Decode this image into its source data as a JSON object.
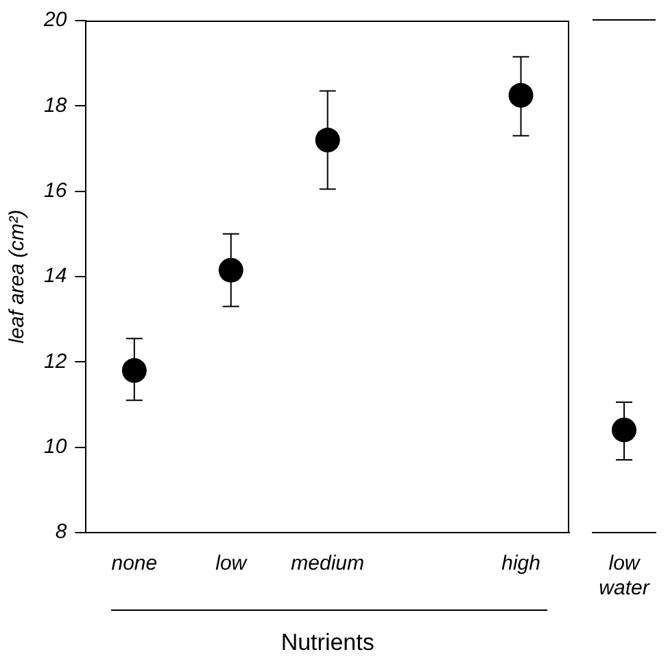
{
  "chart_data": [
    {
      "type": "scatter",
      "xlabel": "Nutrients",
      "ylabel": "leaf area (cm²)",
      "categories": [
        "none",
        "low",
        "medium",
        null,
        "high"
      ],
      "values": [
        11.8,
        14.15,
        17.2,
        null,
        18.25
      ],
      "errors": [
        [
          11.1,
          12.55
        ],
        [
          13.3,
          15.0
        ],
        [
          16.05,
          18.35
        ],
        null,
        [
          17.3,
          19.15
        ]
      ],
      "color": "#000000",
      "marker": "circle",
      "ylim": [
        8,
        20
      ],
      "yticks": [
        8,
        10,
        12,
        14,
        16,
        18,
        20
      ],
      "grid": false,
      "legend": false
    },
    {
      "type": "scatter",
      "categories": [
        "low water"
      ],
      "values": [
        10.4
      ],
      "errors": [
        [
          9.7,
          11.05
        ]
      ],
      "color": "#000000",
      "marker": "circle",
      "ylim": [
        8,
        20
      ],
      "yticks": [
        8,
        10,
        12,
        14,
        16,
        18,
        20
      ],
      "grid": false,
      "legend": false,
      "tick_labels": "x"
    }
  ]
}
